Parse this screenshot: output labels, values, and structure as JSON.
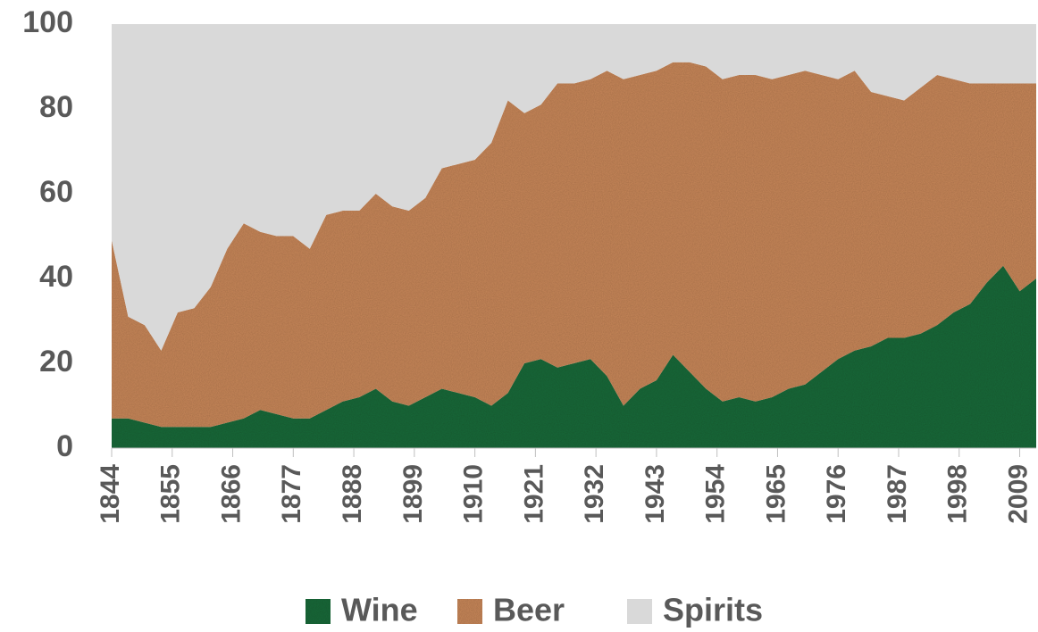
{
  "chart_data": {
    "type": "area",
    "stacked": true,
    "x": [
      1844,
      1847,
      1850,
      1853,
      1856,
      1859,
      1862,
      1865,
      1868,
      1871,
      1874,
      1877,
      1880,
      1883,
      1886,
      1889,
      1892,
      1895,
      1898,
      1901,
      1904,
      1907,
      1910,
      1913,
      1916,
      1919,
      1922,
      1925,
      1928,
      1931,
      1934,
      1937,
      1940,
      1943,
      1946,
      1949,
      1952,
      1955,
      1958,
      1961,
      1964,
      1967,
      1970,
      1973,
      1976,
      1979,
      1982,
      1985,
      1988,
      1991,
      1994,
      1997,
      2000,
      2003,
      2006,
      2009,
      2012
    ],
    "series": [
      {
        "name": "Wine",
        "color": "#1f6b3a",
        "values": [
          7,
          7,
          6,
          5,
          5,
          5,
          5,
          6,
          7,
          9,
          8,
          7,
          7,
          9,
          11,
          12,
          14,
          11,
          10,
          12,
          14,
          13,
          12,
          10,
          13,
          20,
          21,
          19,
          20,
          21,
          17,
          10,
          14,
          16,
          22,
          18,
          14,
          11,
          12,
          11,
          12,
          14,
          15,
          18,
          21,
          23,
          24,
          26,
          26,
          27,
          29,
          32,
          34,
          39,
          43,
          37,
          40
        ]
      },
      {
        "name": "Beer",
        "color": "#c8875a",
        "values": [
          42,
          24,
          23,
          18,
          27,
          28,
          33,
          41,
          46,
          42,
          42,
          43,
          40,
          46,
          45,
          44,
          46,
          46,
          46,
          47,
          52,
          54,
          56,
          62,
          69,
          59,
          60,
          67,
          66,
          66,
          72,
          77,
          74,
          73,
          69,
          73,
          76,
          76,
          76,
          77,
          75,
          74,
          74,
          70,
          66,
          66,
          60,
          57,
          56,
          58,
          59,
          55,
          52,
          47,
          43,
          49,
          46
        ]
      },
      {
        "name": "Spirits",
        "color": "#d9d9d9",
        "values": [
          51,
          69,
          71,
          77,
          68,
          67,
          62,
          53,
          47,
          49,
          50,
          50,
          53,
          45,
          44,
          44,
          40,
          43,
          44,
          41,
          34,
          33,
          32,
          28,
          18,
          21,
          19,
          14,
          14,
          13,
          11,
          13,
          12,
          11,
          9,
          9,
          10,
          13,
          12,
          12,
          13,
          12,
          11,
          12,
          13,
          11,
          16,
          17,
          18,
          15,
          12,
          13,
          14,
          14,
          14,
          14,
          14
        ]
      }
    ],
    "xlim": [
      1844,
      2012
    ],
    "xticks": [
      1844,
      1855,
      1866,
      1877,
      1888,
      1899,
      1910,
      1921,
      1932,
      1943,
      1954,
      1965,
      1976,
      1987,
      1998,
      2009
    ],
    "ylim": [
      0,
      100
    ],
    "yticks": [
      0,
      20,
      40,
      60,
      80,
      100
    ],
    "legend": "bottom"
  }
}
